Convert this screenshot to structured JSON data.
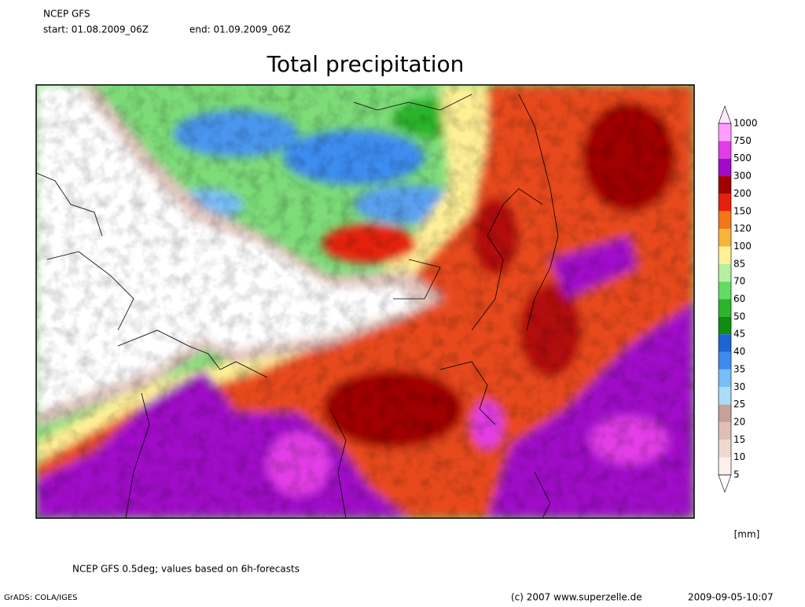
{
  "header": {
    "line1": "NCEP GFS",
    "start": "start: 01.08.2009_06Z",
    "end": "end: 01.09.2009_06Z"
  },
  "title": "Total precipitation",
  "legend": {
    "levels": [
      1000,
      750,
      500,
      300,
      200,
      150,
      120,
      100,
      85,
      70,
      60,
      50,
      45,
      40,
      35,
      30,
      25,
      20,
      15,
      10,
      5
    ],
    "colors": [
      "#ffe6ff",
      "#ff9cff",
      "#e23ce6",
      "#a00ac8",
      "#a00000",
      "#e6200e",
      "#f07818",
      "#f5b43c",
      "#fff096",
      "#b4f0a0",
      "#64dc64",
      "#2cb42c",
      "#108c10",
      "#1e64d2",
      "#3c8cf0",
      "#78bef8",
      "#aadcfa",
      "#c8a09a",
      "#e0beb8",
      "#f0d8d2",
      "#fff0ee",
      "#ffffff"
    ],
    "unit": "[mm]"
  },
  "footer": {
    "note": "NCEP GFS 0.5deg; values based on 6h-forecasts",
    "software": "GrADS: COLA/IGES",
    "copyright": "(c) 2007 www.superzelle.de",
    "timestamp": "2009-09-05-10:07"
  }
}
